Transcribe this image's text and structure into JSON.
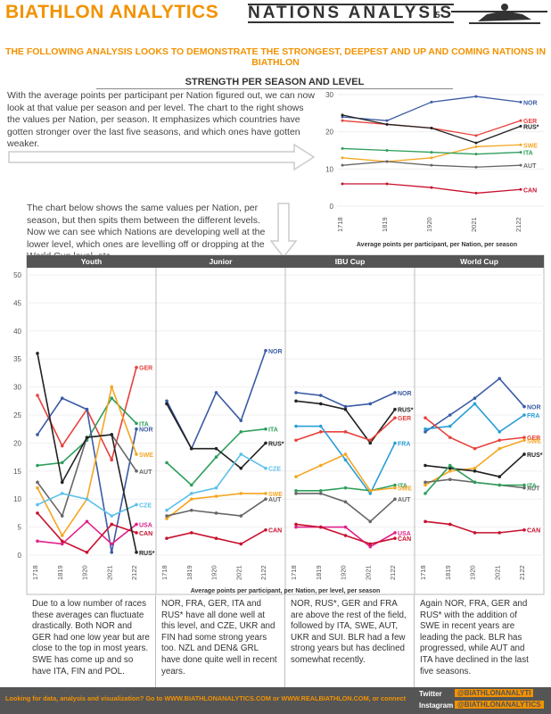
{
  "header": {
    "brand": "BIATHLON ANALYTICS",
    "title": "NATIONS ANALYSIS",
    "page": "5"
  },
  "subtitle": "THE FOLLOWING ANALYSIS LOOKS TO DEMONSTRATE THE STRONGEST, DEEPEST AND UP AND COMING NATIONS IN BIATHLON",
  "section_title": "STRENGTH PER SEASON AND LEVEL",
  "paragraphs": [
    "With the average points per participant per Nation figured out, we can now look at that value per season and per level. The chart to the right shows the values per Nation, per season. It emphasizes which countries have gotten stronger over the last five seasons, and which ones have gotten weaker.",
    "The chart below shows the same values per Nation, per season, but then spits them between the different levels. Now we can see which Nations are developing well at the lower level, which ones are levelling off or dropping at the World Cup level, etc."
  ],
  "notes": [
    "Due to a low number of races these averages can fluctuate drastically. Both NOR and GER had one low year but are close to the top in most years. SWE has come up and so have ITA, FIN and POL.",
    "NOR, FRA, GER, ITA and RUS* have all done well at this level, and CZE, UKR and FIN had some strong years too. NZL and DEN& GRL have done quite well in recent years.",
    "NOR, RUS*, GER and FRA are above the rest of the field, followed by ITA, SWE, AUT, UKR and SUI. BLR had a few strong years but has declined somewhat recently.",
    "Again NOR, FRA, GER and RUS* with the addition of SWE in recent years are leading the pack. BLR has progressed, while AUT and ITA have declined in the last five seasons."
  ],
  "footer": {
    "text": "Looking for data, analysis and visualization? Go to WWW.BIATHLONANALYTICS.COM or WWW.REALBIATHLON.COM, or connect",
    "twitter_label": "Twitter",
    "twitter": "@BIATHLONANALYTI",
    "instagram_label": "Instagram",
    "instagram": "@BIATHLONANALYTICS"
  },
  "chart_data": [
    {
      "type": "line",
      "xlabel": "Average points  per participant, per Nation, per season",
      "categories": [
        "1718",
        "1819",
        "1920",
        "2021",
        "2122"
      ],
      "ylim": [
        0,
        30
      ],
      "yticks": [
        0,
        10,
        20,
        30
      ],
      "series": [
        {
          "name": "NOR",
          "color": "#3b5ba5",
          "values": [
            24,
            23,
            28,
            29.5,
            28
          ]
        },
        {
          "name": "GER",
          "color": "#e8413c",
          "values": [
            23,
            22,
            21,
            19,
            23
          ]
        },
        {
          "name": "RUS*",
          "color": "#222222",
          "values": [
            24.5,
            22,
            21,
            17,
            21.5
          ]
        },
        {
          "name": "SWE",
          "color": "#f5a623",
          "values": [
            13,
            12,
            13,
            16,
            16.5
          ]
        },
        {
          "name": "ITA",
          "color": "#2e9e5b",
          "values": [
            15.5,
            15,
            14.5,
            14,
            14.5
          ]
        },
        {
          "name": "AUT",
          "color": "#666666",
          "values": [
            11,
            12,
            11,
            10.5,
            11
          ]
        },
        {
          "name": "CAN",
          "color": "#c8102e",
          "values": [
            6,
            6,
            5,
            3.5,
            4.5
          ]
        }
      ]
    },
    {
      "type": "line",
      "xlabel": "Average points  per participant, per Nation, per level, per season",
      "categories": [
        "1718",
        "1819",
        "1920",
        "2021",
        "2122"
      ],
      "ylim": [
        0,
        50
      ],
      "yticks": [
        0,
        5,
        10,
        15,
        20,
        25,
        30,
        35,
        40,
        45,
        50
      ],
      "panels": [
        {
          "title": "Youth",
          "series": [
            {
              "name": "GER",
              "color": "#e8413c",
              "values": [
                28.5,
                19.5,
                26,
                17,
                33.5
              ]
            },
            {
              "name": "ITA",
              "color": "#2e9e5b",
              "values": [
                16,
                16.5,
                20.5,
                28,
                23.5
              ]
            },
            {
              "name": "NOR",
              "color": "#3b5ba5",
              "values": [
                21.5,
                28,
                26,
                0.5,
                22.5
              ]
            },
            {
              "name": "SWE",
              "color": "#f5a623",
              "values": [
                12,
                3.5,
                10,
                30,
                18
              ]
            },
            {
              "name": "AUT",
              "color": "#666666",
              "values": [
                13,
                7,
                21,
                21.5,
                15
              ]
            },
            {
              "name": "CZE",
              "color": "#5bc0eb",
              "values": [
                9,
                11,
                10,
                7,
                9
              ]
            },
            {
              "name": "USA",
              "color": "#e0218a",
              "values": [
                2.5,
                2,
                6,
                2,
                5.5
              ]
            },
            {
              "name": "CAN",
              "color": "#c8102e",
              "values": [
                7.5,
                2.5,
                0.5,
                5.5,
                4
              ]
            },
            {
              "name": "RUS*",
              "color": "#222222",
              "values": [
                36,
                13,
                21,
                21.5,
                0.5
              ]
            }
          ]
        },
        {
          "title": "Junior",
          "series": [
            {
              "name": "NOR",
              "color": "#3b5ba5",
              "values": [
                27.5,
                19,
                29,
                24,
                36.5
              ]
            },
            {
              "name": "ITA",
              "color": "#2e9e5b",
              "values": [
                16.5,
                12.5,
                17.5,
                22,
                22.5
              ]
            },
            {
              "name": "RUS*",
              "color": "#222222",
              "values": [
                27,
                19,
                19,
                15.5,
                20
              ]
            },
            {
              "name": "CZE",
              "color": "#5bc0eb",
              "values": [
                8,
                11,
                12,
                18,
                15.5
              ]
            },
            {
              "name": "SWE",
              "color": "#f5a623",
              "values": [
                6.5,
                10,
                10.5,
                11,
                11
              ]
            },
            {
              "name": "AUT",
              "color": "#666666",
              "values": [
                7,
                8,
                7.5,
                7,
                10
              ]
            },
            {
              "name": "CAN",
              "color": "#c8102e",
              "values": [
                3,
                4,
                3,
                2,
                4.5
              ]
            }
          ]
        },
        {
          "title": "IBU Cup",
          "series": [
            {
              "name": "NOR",
              "color": "#3b5ba5",
              "values": [
                29,
                28.5,
                26.5,
                27,
                29
              ]
            },
            {
              "name": "RUS*",
              "color": "#222222",
              "values": [
                27.5,
                27,
                26,
                20,
                26
              ]
            },
            {
              "name": "GER",
              "color": "#e8413c",
              "values": [
                20.5,
                22,
                22,
                20.5,
                24.5
              ]
            },
            {
              "name": "FRA",
              "color": "#2a9fd6",
              "values": [
                23,
                23,
                17,
                11,
                20
              ]
            },
            {
              "name": "ITA",
              "color": "#2e9e5b",
              "values": [
                11.5,
                11.5,
                12,
                11.5,
                12.5
              ]
            },
            {
              "name": "SWE",
              "color": "#f5a623",
              "values": [
                14,
                16,
                18,
                11.5,
                12
              ]
            },
            {
              "name": "AUT",
              "color": "#666666",
              "values": [
                11,
                11,
                9.5,
                6,
                10
              ]
            },
            {
              "name": "USA",
              "color": "#e0218a",
              "values": [
                5,
                5,
                5,
                1.5,
                4
              ]
            },
            {
              "name": "CAN",
              "color": "#c8102e",
              "values": [
                5.5,
                5,
                3.5,
                2,
                3
              ]
            }
          ]
        },
        {
          "title": "World Cup",
          "series": [
            {
              "name": "NOR",
              "color": "#3b5ba5",
              "values": [
                22,
                25,
                28,
                31.5,
                26.5
              ]
            },
            {
              "name": "FRA",
              "color": "#2a9fd6",
              "values": [
                22.5,
                23,
                27,
                22,
                25
              ]
            },
            {
              "name": "GER",
              "color": "#e8413c",
              "values": [
                24.5,
                21,
                19,
                20.5,
                21
              ]
            },
            {
              "name": "SWE",
              "color": "#f5a623",
              "values": [
                12.5,
                15,
                15.5,
                19,
                20.5
              ]
            },
            {
              "name": "RUS*",
              "color": "#222222",
              "values": [
                16,
                15.5,
                15,
                14,
                18
              ]
            },
            {
              "name": "AUT",
              "color": "#666666",
              "values": [
                13,
                13.5,
                13,
                12.5,
                12
              ]
            },
            {
              "name": "ITA",
              "color": "#2e9e5b",
              "values": [
                11,
                16,
                13,
                12.5,
                12.5
              ]
            },
            {
              "name": "CAN",
              "color": "#c8102e",
              "values": [
                6,
                5.5,
                4,
                4,
                4.5
              ]
            }
          ]
        }
      ]
    }
  ]
}
